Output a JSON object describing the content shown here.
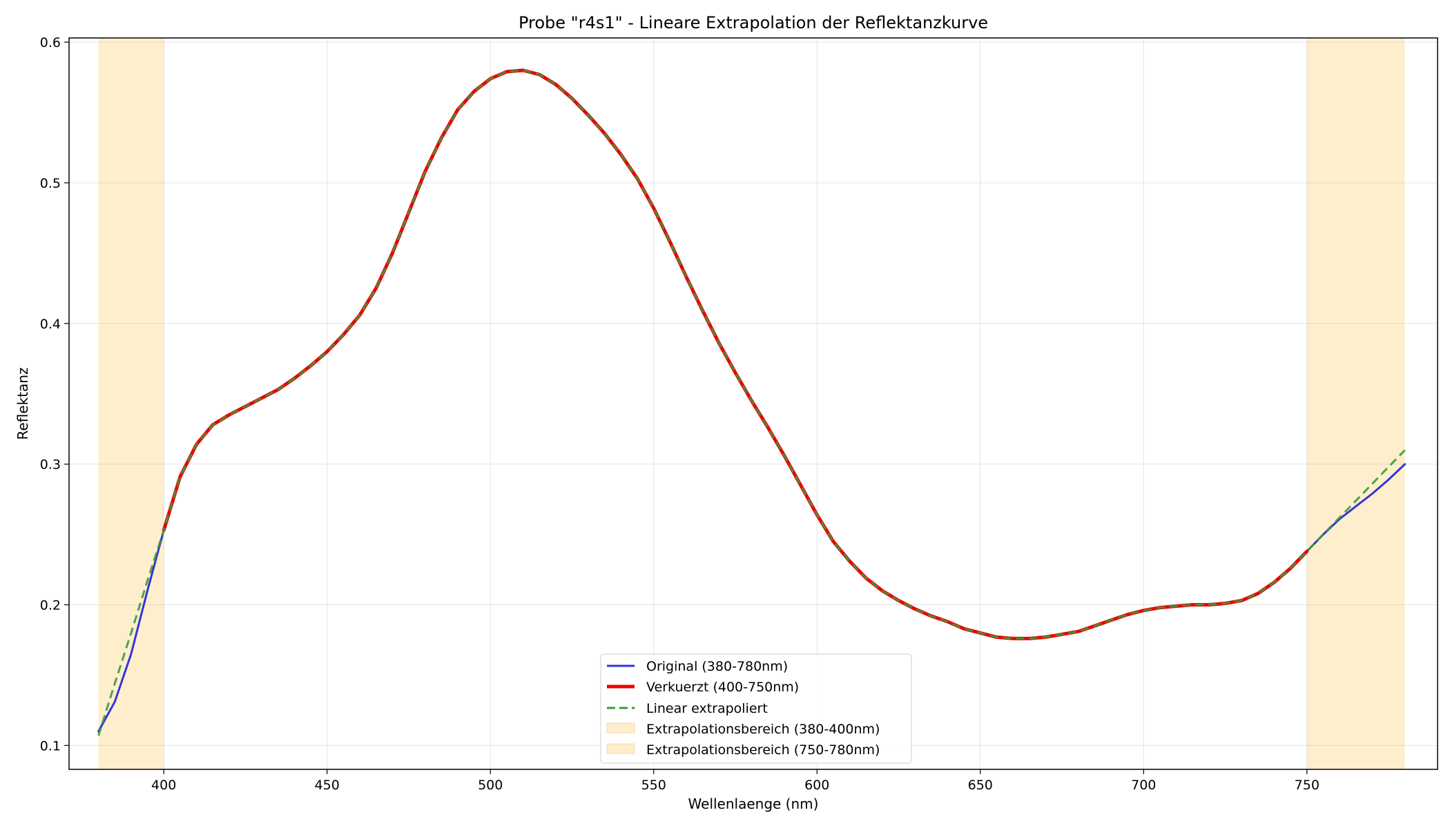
{
  "chart_data": {
    "type": "line",
    "title": "Probe \"r4s1\" - Lineare Extrapolation der Reflektanzkurve",
    "xlabel": "Wellenlaenge (nm)",
    "ylabel": "Reflektanz",
    "xlim": [
      371,
      790
    ],
    "ylim": [
      0.083,
      0.603
    ],
    "xticks": [
      400,
      450,
      500,
      550,
      600,
      650,
      700,
      750
    ],
    "yticks": [
      0.1,
      0.2,
      0.3,
      0.4,
      0.5,
      0.6
    ],
    "xtick_labels": [
      "400",
      "450",
      "500",
      "550",
      "600",
      "650",
      "700",
      "750"
    ],
    "ytick_labels": [
      "0.1",
      "0.2",
      "0.3",
      "0.4",
      "0.5",
      "0.6"
    ],
    "grid": true,
    "legend_position": "bottom-center",
    "shaded_regions": [
      {
        "name": "Extrapolationsbereich (380-400nm)",
        "x_range": [
          380,
          400
        ],
        "color": "#ffe0a0"
      },
      {
        "name": "Extrapolationsbereich (750-780nm)",
        "x_range": [
          750,
          780
        ],
        "color": "#ffe0a0"
      }
    ],
    "series": [
      {
        "name": "Original (380-780nm)",
        "color": "#3333dd",
        "style": "solid",
        "x": [
          380,
          385,
          390,
          395,
          400,
          405,
          410,
          415,
          420,
          425,
          430,
          435,
          440,
          445,
          450,
          455,
          460,
          465,
          470,
          475,
          480,
          485,
          490,
          495,
          500,
          505,
          510,
          515,
          520,
          525,
          530,
          535,
          540,
          545,
          550,
          555,
          560,
          565,
          570,
          575,
          580,
          585,
          590,
          595,
          600,
          605,
          610,
          615,
          620,
          625,
          630,
          635,
          640,
          645,
          650,
          655,
          660,
          665,
          670,
          675,
          680,
          685,
          690,
          695,
          700,
          705,
          710,
          715,
          720,
          725,
          730,
          735,
          740,
          745,
          750,
          755,
          760,
          765,
          770,
          775,
          780
        ],
        "y": [
          0.11,
          0.131,
          0.165,
          0.21,
          0.253,
          0.291,
          0.314,
          0.328,
          0.335,
          0.341,
          0.347,
          0.353,
          0.361,
          0.37,
          0.38,
          0.392,
          0.406,
          0.425,
          0.45,
          0.479,
          0.508,
          0.532,
          0.552,
          0.565,
          0.574,
          0.579,
          0.58,
          0.577,
          0.57,
          0.56,
          0.548,
          0.535,
          0.52,
          0.503,
          0.482,
          0.458,
          0.433,
          0.409,
          0.386,
          0.365,
          0.345,
          0.326,
          0.306,
          0.285,
          0.264,
          0.245,
          0.231,
          0.219,
          0.21,
          0.203,
          0.197,
          0.192,
          0.188,
          0.183,
          0.18,
          0.177,
          0.176,
          0.176,
          0.177,
          0.179,
          0.181,
          0.185,
          0.189,
          0.193,
          0.196,
          0.198,
          0.199,
          0.2,
          0.2,
          0.201,
          0.203,
          0.208,
          0.216,
          0.226,
          0.238,
          0.25,
          0.261,
          0.27,
          0.279,
          0.289,
          0.3
        ]
      },
      {
        "name": "Verkuerzt (400-750nm)",
        "color": "#ee0000",
        "style": "solid",
        "x": [
          400,
          405,
          410,
          415,
          420,
          425,
          430,
          435,
          440,
          445,
          450,
          455,
          460,
          465,
          470,
          475,
          480,
          485,
          490,
          495,
          500,
          505,
          510,
          515,
          520,
          525,
          530,
          535,
          540,
          545,
          550,
          555,
          560,
          565,
          570,
          575,
          580,
          585,
          590,
          595,
          600,
          605,
          610,
          615,
          620,
          625,
          630,
          635,
          640,
          645,
          650,
          655,
          660,
          665,
          670,
          675,
          680,
          685,
          690,
          695,
          700,
          705,
          710,
          715,
          720,
          725,
          730,
          735,
          740,
          745,
          750
        ],
        "y": [
          0.253,
          0.291,
          0.314,
          0.328,
          0.335,
          0.341,
          0.347,
          0.353,
          0.361,
          0.37,
          0.38,
          0.392,
          0.406,
          0.425,
          0.45,
          0.479,
          0.508,
          0.532,
          0.552,
          0.565,
          0.574,
          0.579,
          0.58,
          0.577,
          0.57,
          0.56,
          0.548,
          0.535,
          0.52,
          0.503,
          0.482,
          0.458,
          0.433,
          0.409,
          0.386,
          0.365,
          0.345,
          0.326,
          0.306,
          0.285,
          0.264,
          0.245,
          0.231,
          0.219,
          0.21,
          0.203,
          0.197,
          0.192,
          0.188,
          0.183,
          0.18,
          0.177,
          0.176,
          0.176,
          0.177,
          0.179,
          0.181,
          0.185,
          0.189,
          0.193,
          0.196,
          0.198,
          0.199,
          0.2,
          0.2,
          0.201,
          0.203,
          0.208,
          0.216,
          0.226,
          0.238
        ]
      },
      {
        "name": "Linear extrapoliert",
        "color": "#3a9a3a",
        "style": "dashed",
        "x": [
          380,
          385,
          390,
          395,
          400,
          405,
          410,
          415,
          420,
          425,
          430,
          435,
          440,
          445,
          450,
          455,
          460,
          465,
          470,
          475,
          480,
          485,
          490,
          495,
          500,
          505,
          510,
          515,
          520,
          525,
          530,
          535,
          540,
          545,
          550,
          555,
          560,
          565,
          570,
          575,
          580,
          585,
          590,
          595,
          600,
          605,
          610,
          615,
          620,
          625,
          630,
          635,
          640,
          645,
          650,
          655,
          660,
          665,
          670,
          675,
          680,
          685,
          690,
          695,
          700,
          705,
          710,
          715,
          720,
          725,
          730,
          735,
          740,
          745,
          750,
          755,
          760,
          765,
          770,
          775,
          780
        ],
        "y": [
          0.107,
          0.144,
          0.18,
          0.217,
          0.253,
          0.291,
          0.314,
          0.328,
          0.335,
          0.341,
          0.347,
          0.353,
          0.361,
          0.37,
          0.38,
          0.392,
          0.406,
          0.425,
          0.45,
          0.479,
          0.508,
          0.532,
          0.552,
          0.565,
          0.574,
          0.579,
          0.58,
          0.577,
          0.57,
          0.56,
          0.548,
          0.535,
          0.52,
          0.503,
          0.482,
          0.458,
          0.433,
          0.409,
          0.386,
          0.365,
          0.345,
          0.326,
          0.306,
          0.285,
          0.264,
          0.245,
          0.231,
          0.219,
          0.21,
          0.203,
          0.197,
          0.192,
          0.188,
          0.183,
          0.18,
          0.177,
          0.176,
          0.176,
          0.177,
          0.179,
          0.181,
          0.185,
          0.189,
          0.193,
          0.196,
          0.198,
          0.199,
          0.2,
          0.2,
          0.201,
          0.203,
          0.208,
          0.216,
          0.226,
          0.238,
          0.25,
          0.262,
          0.274,
          0.286,
          0.298,
          0.31
        ]
      }
    ]
  }
}
